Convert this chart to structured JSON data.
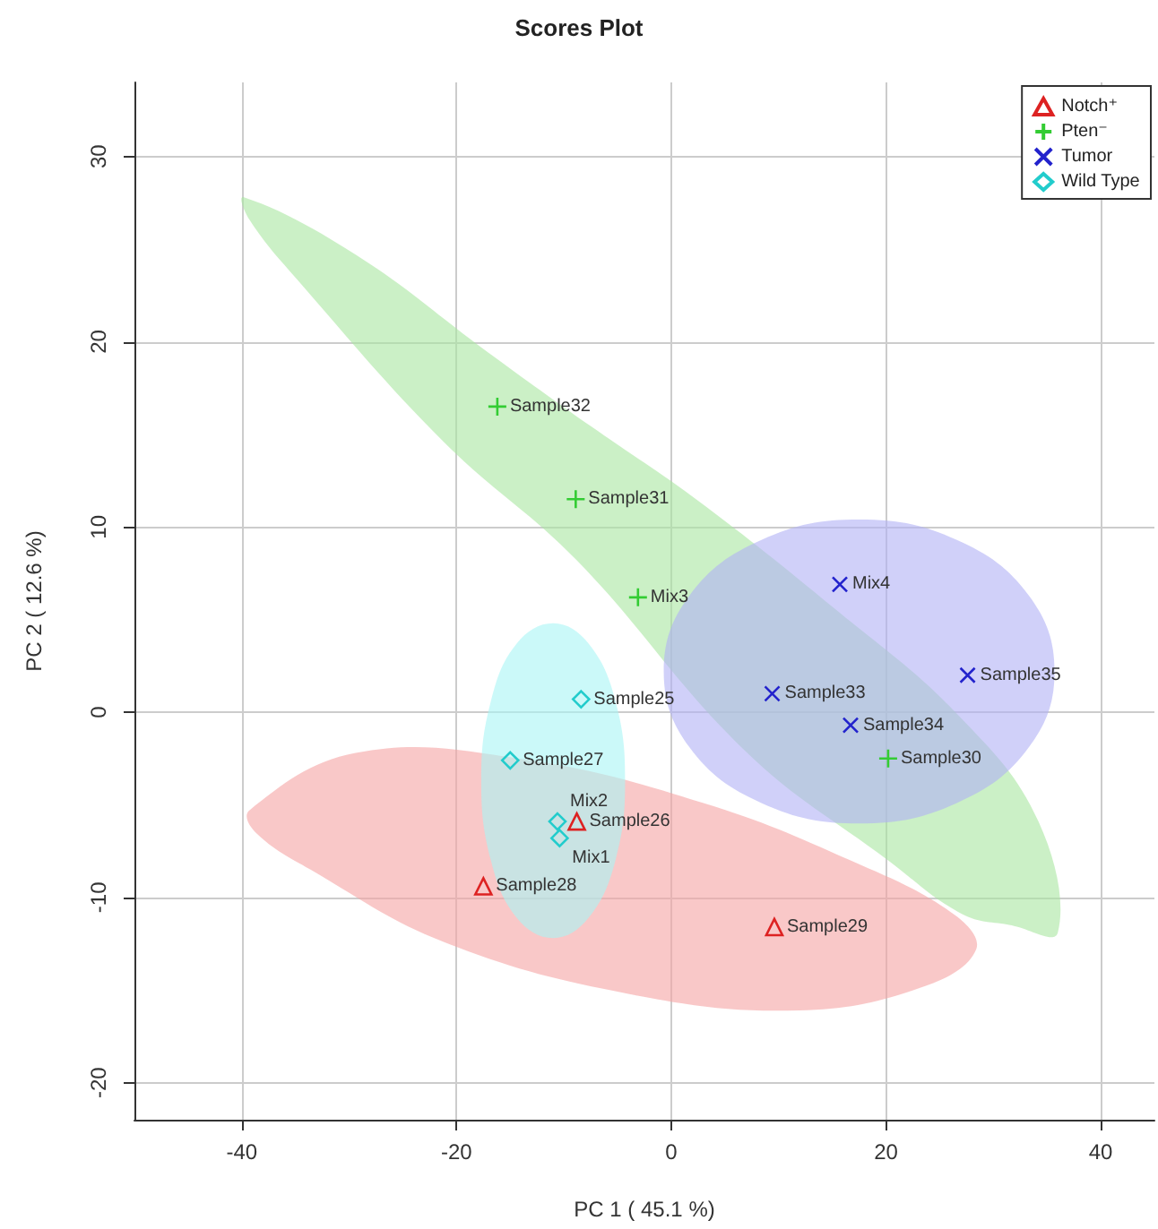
{
  "chart_data": {
    "type": "scatter",
    "title": "Scores Plot",
    "xlabel": "PC 1 ( 45.1 %)",
    "ylabel": "PC 2 ( 12.6 %)",
    "xlim": [
      -50,
      45
    ],
    "ylim": [
      -22,
      34
    ],
    "xticks": [
      -40,
      -20,
      0,
      20,
      40
    ],
    "yticks": [
      -20,
      -10,
      0,
      10,
      20,
      30
    ],
    "grid": true,
    "legend": "top right",
    "series": [
      {
        "type": "area",
        "color": "#f5a3a3",
        "x": [
          -39.3,
          -29.4,
          -14.2,
          3.0,
          16.7,
          26.3,
          28.4,
          23.6,
          11.9,
          -4.0,
          -21.2,
          -33.6,
          -38.7
        ],
        "values": [
          -5.3,
          -2.2,
          -2.5,
          -4.9,
          -8.0,
          -10.9,
          -12.8,
          -14.8,
          -16.1,
          -15.2,
          -12.4,
          -8.5,
          -6.5
        ]
      },
      {
        "type": "area",
        "color": "#a8e6a0",
        "x": [
          -39.8,
          -29.4,
          -17.0,
          -7.4,
          2.3,
          15.2,
          26.8,
          34.2,
          36.0,
          31.7,
          27.1,
          20.2,
          6.9,
          -8.8,
          -21.2,
          -34.9,
          -39.3
        ],
        "values": [
          27.8,
          24.7,
          19.4,
          15.4,
          11.5,
          5.6,
          -0.2,
          -5.9,
          -11.9,
          -11.5,
          -10.9,
          -8.0,
          -2.1,
          8.2,
          14.6,
          23.4,
          26.6
        ]
      },
      {
        "type": "area",
        "color": "#b0b0f5",
        "x": [
          35.7,
          33.3,
          26.6,
          17.5,
          8.4,
          1.7,
          -0.7,
          1.7,
          8.4,
          17.5,
          26.6,
          33.3
        ],
        "values": [
          2.2,
          6.3,
          9.3,
          10.4,
          9.3,
          6.3,
          2.2,
          -1.9,
          -4.9,
          -6.0,
          -4.9,
          -1.9
        ]
      },
      {
        "type": "area",
        "color": "#a8f5f5",
        "x": [
          -4.3,
          -5.2,
          -7.7,
          -11,
          -14.4,
          -16.8,
          -17.7,
          -16.8,
          -14.4,
          -11,
          -7.7,
          -5.2
        ],
        "values": [
          -3.7,
          0.6,
          3.7,
          4.8,
          3.7,
          0.6,
          -3.7,
          -8.0,
          -11.1,
          -12.2,
          -11.1,
          -8.0
        ]
      },
      {
        "name": "Notch⁺",
        "color": "#dd2222",
        "marker": "triangle",
        "x": [
          -17.5,
          9.6,
          -8.8
        ],
        "values": [
          -9.4,
          -11.6,
          -5.9
        ]
      },
      {
        "name": "Pten⁻",
        "color": "#33cc33",
        "marker": "plus",
        "x": [
          -16.2,
          -8.9,
          -3.1,
          20.2
        ],
        "values": [
          16.5,
          11.5,
          6.2,
          -2.5
        ]
      },
      {
        "name": "Tumor",
        "color": "#2222cc",
        "marker": "cross",
        "x": [
          15.7,
          9.4,
          16.7,
          27.6
        ],
        "values": [
          6.9,
          1.0,
          -0.7,
          2.0
        ]
      },
      {
        "name": "Wild Type",
        "color": "#22cccc",
        "marker": "diamond",
        "x": [
          -8.4,
          -15.0,
          -10.6,
          -10.4
        ],
        "values": [
          0.7,
          -2.6,
          -5.9,
          -6.8
        ]
      }
    ],
    "annotations": [
      {
        "text": "Sample28",
        "x": -17.5,
        "y": -9.4
      },
      {
        "text": "Sample29",
        "x": 9.6,
        "y": -11.6
      },
      {
        "text": "Sample26",
        "x": -8.8,
        "y": -5.9
      },
      {
        "text": "Sample32",
        "x": -16.2,
        "y": 16.5
      },
      {
        "text": "Sample31",
        "x": -8.9,
        "y": 11.5
      },
      {
        "text": "Mix3",
        "x": -3.1,
        "y": 6.2
      },
      {
        "text": "Sample30",
        "x": 20.2,
        "y": -2.5
      },
      {
        "text": "Mix4",
        "x": 15.7,
        "y": 6.9
      },
      {
        "text": "Sample33",
        "x": 9.4,
        "y": 1.0
      },
      {
        "text": "Sample34",
        "x": 16.7,
        "y": -0.7
      },
      {
        "text": "Sample35",
        "x": 27.6,
        "y": 2.0
      },
      {
        "text": "Sample25",
        "x": -8.4,
        "y": 0.7
      },
      {
        "text": "Sample27",
        "x": -15.0,
        "y": -2.6
      },
      {
        "text": "Mix2",
        "x": -10.6,
        "y": -5.9
      },
      {
        "text": "Mix1",
        "x": -10.4,
        "y": -6.8
      }
    ]
  }
}
